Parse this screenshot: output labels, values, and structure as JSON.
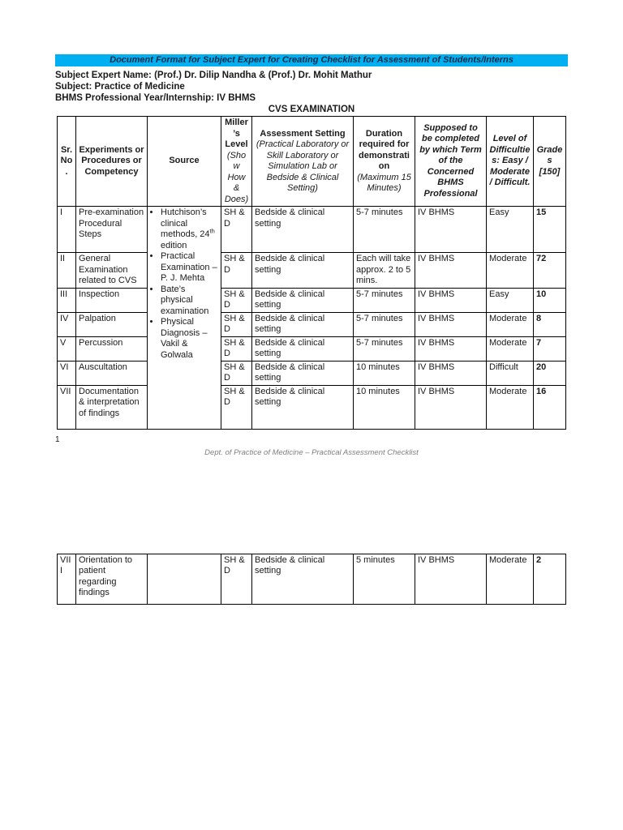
{
  "colors": {
    "highlight_cyan": "#00b0f0",
    "title_bar_text": "#0e2a47",
    "body_text": "#1a1a1a",
    "table_border": "#000000",
    "footer_gray": "#7f7f7f"
  },
  "title_bar": {
    "text": "Document Format for Subject Expert for Creating Checklist for Assessment of Students/Interns"
  },
  "meta": {
    "expert_name": "Subject Expert Name: (Prof.) Dr. Dilip Nandha & (Prof.) Dr. Mohit Mathur",
    "subject": "Subject: Practice of Medicine",
    "professional_year": "BHMS Professional Year/Internship: IV BHMS"
  },
  "section_title": "CVS EXAMINATION",
  "table": {
    "headers": {
      "sr": "Sr. No.",
      "experiments": "Experiments or Procedures or Competency",
      "source": "Source",
      "miller_title": "Miller’s Level",
      "miller_sub": "(Show How & Does)",
      "assessment_title": "Assessment Setting",
      "assessment_sub": "(Practical Laboratory or Skill Laboratory or Simulation Lab or Bedside & Clinical Setting)",
      "duration_title": "Duration required for demonstration",
      "duration_sub": "(Maximum 15 Minutes)",
      "supposed": "Supposed to be completed by which Term of the Concerned BHMS Professional",
      "difficulty": "Level of Difficulties: Easy / Moderate / Difficult.",
      "grades": "Grades [150]"
    },
    "source_items": [
      {
        "text": "Hutchison’s clinical methods, 24",
        "sup": "th",
        "text_after": " edition"
      },
      {
        "text": "Practical Examination – P. J. Mehta"
      },
      {
        "text": "Bate’s physical examination"
      },
      {
        "text": "Physical Diagnosis – Vakil & Golwala"
      }
    ],
    "rows": [
      {
        "sr": "I",
        "experiment": "Pre-examination Procedural Steps",
        "miller": "SH & D",
        "setting": "Bedside & clinical setting",
        "duration": "5-7 minutes",
        "term": "IV BHMS",
        "difficulty": "Easy",
        "grade": "15"
      },
      {
        "sr": "II",
        "experiment": "General Examination related to CVS",
        "miller": "SH & D",
        "setting": "Bedside & clinical setting",
        "duration": "Each will take approx. 2 to 5 mins.",
        "term": "IV BHMS",
        "difficulty": "Moderate",
        "grade": "72"
      },
      {
        "sr": "III",
        "experiment": "Inspection",
        "miller": "SH & D",
        "setting": "Bedside & clinical setting",
        "duration": "5-7 minutes",
        "term": "IV BHMS",
        "difficulty": "Easy",
        "grade": "10"
      },
      {
        "sr": "IV",
        "experiment": "Palpation",
        "miller": "SH & D",
        "setting": "Bedside & clinical setting",
        "duration": "5-7 minutes",
        "term": "IV BHMS",
        "difficulty": "Moderate",
        "grade": "8"
      },
      {
        "sr": "V",
        "experiment": "Percussion",
        "miller": "SH & D",
        "setting": "Bedside & clinical setting",
        "duration": "5-7 minutes",
        "term": "IV BHMS",
        "difficulty": "Moderate",
        "grade": "7"
      },
      {
        "sr": "VI",
        "experiment": "Auscultation",
        "miller": "SH & D",
        "setting": "Bedside & clinical setting",
        "duration": "10 minutes",
        "term": "IV BHMS",
        "difficulty": "Difficult",
        "grade": "20"
      },
      {
        "sr": "VII",
        "experiment": "Documentation & interpretation of findings",
        "miller": "SH & D",
        "setting": "Bedside & clinical setting",
        "duration": "10 minutes",
        "term": "IV BHMS",
        "difficulty": "Moderate",
        "grade": "16"
      }
    ]
  },
  "page_number": "1",
  "footer_text": "Dept. of Practice of Medicine – Practical Assessment Checklist",
  "continuation_table": {
    "rows": [
      {
        "sr": "VIII",
        "experiment": "Orientation to patient regarding findings",
        "source": "",
        "miller": "SH & D",
        "setting": "Bedside & clinical setting",
        "duration": "5 minutes",
        "term": "IV BHMS",
        "difficulty": "Moderate",
        "grade": "2"
      }
    ]
  }
}
